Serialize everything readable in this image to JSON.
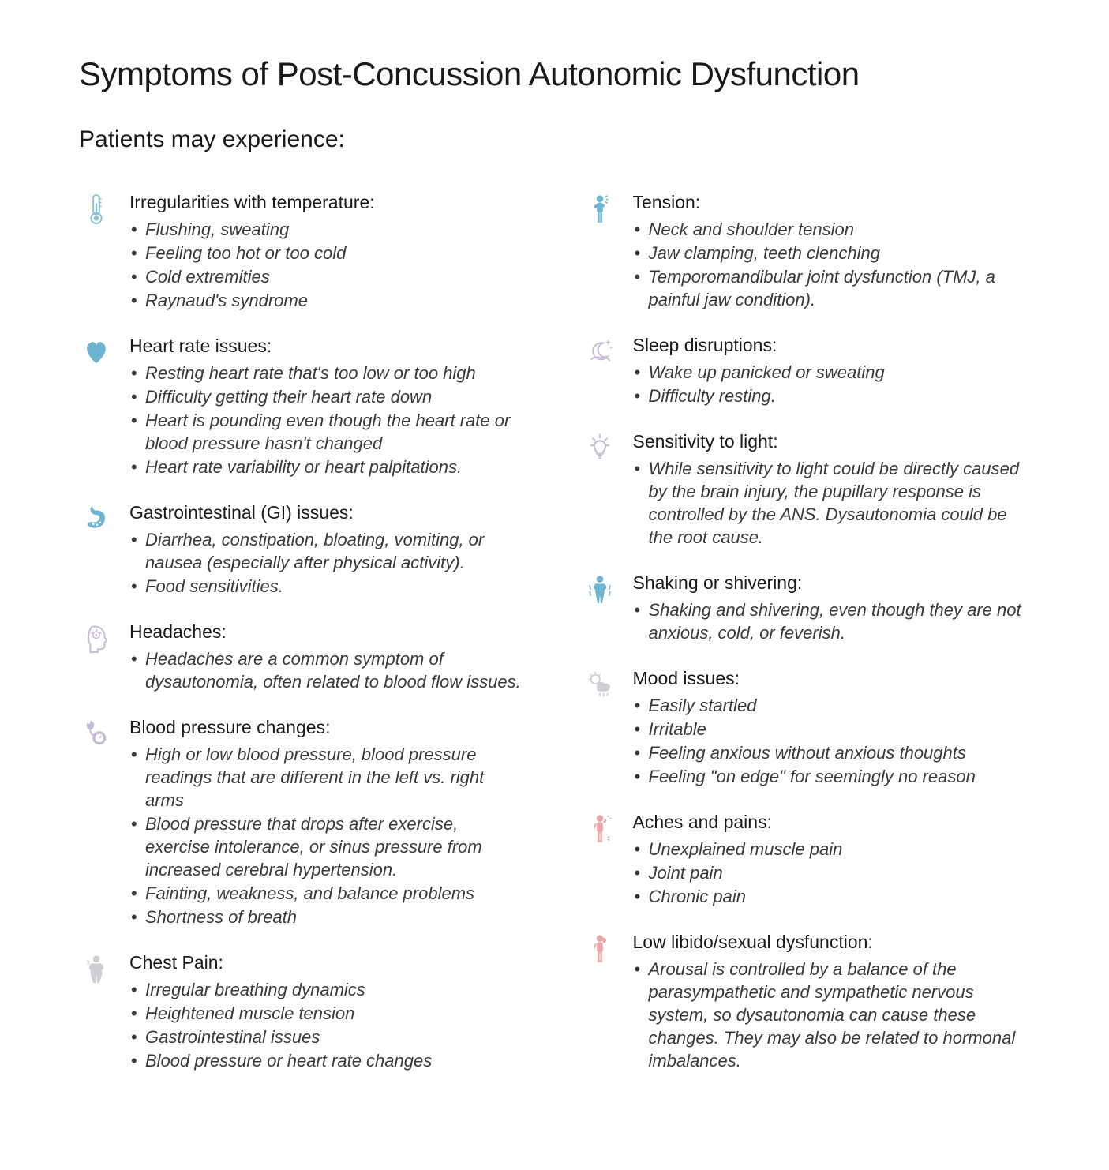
{
  "title": "Symptoms of Post-Concussion Autonomic Dysfunction",
  "subtitle": "Patients may experience:",
  "colors": {
    "blue": "#8bc4d9",
    "blueFill": "#6db5d1",
    "lavender": "#c5bbd8",
    "pink": "#eaa6a6",
    "grey": "#cfcfd3",
    "text": "#1a1a1a",
    "itemText": "#3a3a3a"
  },
  "left": [
    {
      "icon": "thermometer",
      "iconColor": "blue",
      "title": "Irregularities with temperature",
      "items": [
        "Flushing, sweating",
        "Feeling too hot or too cold",
        "Cold extremities",
        "Raynaud's syndrome"
      ]
    },
    {
      "icon": "heart",
      "iconColor": "blueFill",
      "title": "Heart rate issues",
      "items": [
        "Resting heart rate that's too low or too high",
        "Difficulty getting their heart rate down",
        "Heart is pounding even though the heart rate or blood pressure hasn't changed",
        "Heart rate variability or heart palpitations."
      ]
    },
    {
      "icon": "stomach",
      "iconColor": "blueFill",
      "title": "Gastrointestinal (GI) issues",
      "items": [
        "Diarrhea, constipation, bloating, vomiting, or nausea (especially after physical activity).",
        "Food sensitivities."
      ]
    },
    {
      "icon": "head",
      "iconColor": "lavender",
      "title": "Headaches",
      "items": [
        "Headaches are a common symptom of dysautonomia, often related to blood flow issues."
      ]
    },
    {
      "icon": "bp",
      "iconColor": "lavender",
      "title": "Blood pressure changes",
      "items": [
        "High or low blood pressure, blood pressure readings that are different in the left vs. right arms",
        "Blood pressure that drops after exercise, exercise intolerance, or sinus pressure from increased cerebral hypertension.",
        "Fainting, weakness, and balance problems",
        "Shortness of breath"
      ]
    },
    {
      "icon": "chest",
      "iconColor": "grey",
      "title": "Chest Pain",
      "items": [
        " Irregular breathing dynamics",
        "Heightened muscle tension",
        "Gastrointestinal issues",
        "Blood pressure or heart rate changes"
      ]
    }
  ],
  "right": [
    {
      "icon": "tension",
      "iconColor": "blueFill",
      "title": "Tension",
      "items": [
        "Neck and shoulder tension",
        "Jaw clamping, teeth clenching",
        "Temporomandibular joint dysfunction (TMJ, a painful jaw condition)."
      ]
    },
    {
      "icon": "moon",
      "iconColor": "lavender",
      "title": "Sleep disruptions",
      "items": [
        "Wake up panicked or sweating",
        "Difficulty resting."
      ]
    },
    {
      "icon": "bulb",
      "iconColor": "lavender",
      "title": "Sensitivity to light",
      "items": [
        "While sensitivity to light could be directly caused by the brain injury, the pupillary response is controlled by the ANS. Dysautonomia could be the root cause."
      ]
    },
    {
      "icon": "shiver",
      "iconColor": "blueFill",
      "title": "Shaking or shivering",
      "items": [
        "Shaking and shivering, even though they are not anxious, cold, or feverish."
      ]
    },
    {
      "icon": "mood",
      "iconColor": "grey",
      "title": "Mood issues",
      "items": [
        "Easily startled",
        "Irritable",
        "Feeling anxious without anxious thoughts",
        "Feeling \"on edge\" for seemingly no reason"
      ]
    },
    {
      "icon": "aches",
      "iconColor": "pink",
      "title": "Aches and pains",
      "items": [
        "Unexplained muscle pain",
        "Joint pain",
        "Chronic pain"
      ]
    },
    {
      "icon": "libido",
      "iconColor": "pink",
      "title": "Low libido/sexual dysfunction",
      "items": [
        "Arousal is controlled by a balance of the parasympathetic and sympathetic nervous system, so dysautonomia can cause these changes. They may also be related to hormonal imbalances."
      ]
    }
  ]
}
